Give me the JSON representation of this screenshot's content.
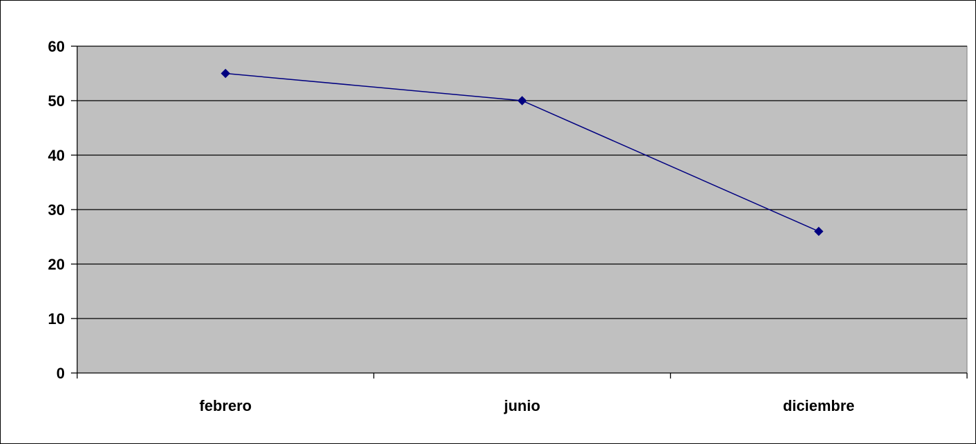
{
  "chart_data": {
    "type": "line",
    "categories": [
      "febrero",
      "junio",
      "diciembre"
    ],
    "series": [
      {
        "values": [
          55,
          50,
          26
        ]
      }
    ],
    "title": "",
    "xlabel": "",
    "ylabel": "",
    "ylim": [
      0,
      60
    ],
    "yticks": [
      "0",
      "10",
      "20",
      "30",
      "40",
      "50",
      "60"
    ],
    "grid": true,
    "legend": "none",
    "colors": {
      "plot_background": "#c0c0c0",
      "line": "#000080",
      "gridline": "#000000"
    }
  }
}
